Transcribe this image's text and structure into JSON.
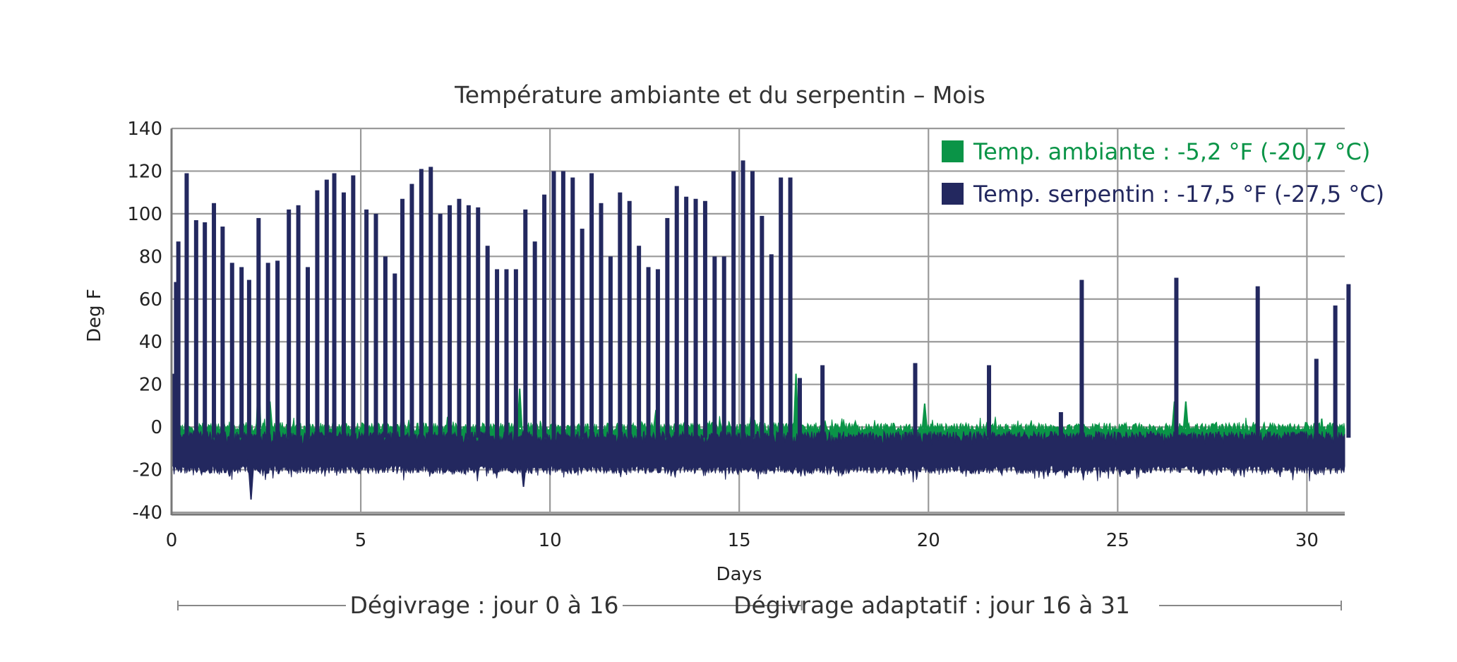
{
  "chart_data": {
    "type": "area",
    "title": "Température ambiante et du serpentin – Mois",
    "xlabel": "Days",
    "ylabel": "Deg F",
    "xlim": [
      0,
      31
    ],
    "ylim": [
      -40,
      140
    ],
    "x_ticks": [
      "0",
      "5",
      "10",
      "15",
      "20",
      "25",
      "30"
    ],
    "y_ticks": [
      "-40",
      "-20",
      "0",
      "20",
      "40",
      "60",
      "80",
      "100",
      "120",
      "140"
    ],
    "grid": true,
    "legend_position": "top-right",
    "series": [
      {
        "name": "Temp. ambiante : -5,2 °F (-20,7 °C)",
        "color": "#0a9447",
        "baseline_range": [
          -12,
          2
        ],
        "spikes": [
          [
            2.3,
            25
          ],
          [
            2.6,
            12
          ],
          [
            6.1,
            8
          ],
          [
            9.2,
            18
          ],
          [
            12.8,
            8
          ],
          [
            16.5,
            25
          ],
          [
            19.9,
            11
          ],
          [
            26.5,
            12
          ],
          [
            26.8,
            12
          ]
        ]
      },
      {
        "name": "Temp. serpentin : -17,5 °F (-27,5 °C)",
        "color": "#23285f",
        "baseline_range": [
          -18,
          -5
        ],
        "dips": [
          [
            2.1,
            -34
          ],
          [
            9.3,
            -28
          ]
        ],
        "defrost_peaks": [
          [
            0.05,
            25
          ],
          [
            0.12,
            68
          ],
          [
            0.18,
            87
          ],
          [
            0.4,
            119
          ],
          [
            0.65,
            97
          ],
          [
            0.88,
            96
          ],
          [
            1.12,
            105
          ],
          [
            1.35,
            94
          ],
          [
            1.6,
            77
          ],
          [
            1.85,
            75
          ],
          [
            2.05,
            69
          ],
          [
            2.3,
            98
          ],
          [
            2.55,
            77
          ],
          [
            2.8,
            78
          ],
          [
            3.1,
            102
          ],
          [
            3.35,
            104
          ],
          [
            3.6,
            75
          ],
          [
            3.85,
            111
          ],
          [
            4.1,
            116
          ],
          [
            4.3,
            119
          ],
          [
            4.55,
            110
          ],
          [
            4.8,
            118
          ],
          [
            5.15,
            102
          ],
          [
            5.4,
            100
          ],
          [
            5.65,
            80
          ],
          [
            5.9,
            72
          ],
          [
            6.1,
            107
          ],
          [
            6.35,
            114
          ],
          [
            6.6,
            121
          ],
          [
            6.85,
            122
          ],
          [
            7.1,
            100
          ],
          [
            7.35,
            104
          ],
          [
            7.6,
            107
          ],
          [
            7.85,
            104
          ],
          [
            8.1,
            103
          ],
          [
            8.35,
            85
          ],
          [
            8.6,
            74
          ],
          [
            8.85,
            74
          ],
          [
            9.1,
            74
          ],
          [
            9.35,
            102
          ],
          [
            9.6,
            87
          ],
          [
            9.85,
            109
          ],
          [
            10.1,
            120
          ],
          [
            10.35,
            120
          ],
          [
            10.6,
            117
          ],
          [
            10.85,
            93
          ],
          [
            11.1,
            119
          ],
          [
            11.35,
            105
          ],
          [
            11.6,
            80
          ],
          [
            11.85,
            110
          ],
          [
            12.1,
            106
          ],
          [
            12.35,
            85
          ],
          [
            12.6,
            75
          ],
          [
            12.85,
            74
          ],
          [
            13.1,
            98
          ],
          [
            13.35,
            113
          ],
          [
            13.6,
            108
          ],
          [
            13.85,
            107
          ],
          [
            14.1,
            106
          ],
          [
            14.35,
            80
          ],
          [
            14.6,
            80
          ],
          [
            14.85,
            120
          ],
          [
            15.1,
            125
          ],
          [
            15.35,
            120
          ],
          [
            15.6,
            99
          ],
          [
            15.85,
            81
          ],
          [
            16.1,
            117
          ],
          [
            16.35,
            117
          ],
          [
            16.6,
            23
          ],
          [
            17.2,
            29
          ],
          [
            19.65,
            30
          ],
          [
            21.6,
            29
          ],
          [
            23.5,
            7
          ],
          [
            24.05,
            69
          ],
          [
            26.55,
            70
          ],
          [
            28.7,
            66
          ],
          [
            30.25,
            32
          ],
          [
            30.75,
            57
          ],
          [
            31.1,
            67
          ]
        ]
      }
    ],
    "annotations": [
      {
        "text": "Dégivrage : jour 0 à 16",
        "x_start": 0,
        "x_end": 16.5
      },
      {
        "text": "Dégivrage adaptatif : jour 16 à 31",
        "x_start": 16.5,
        "x_end": 31
      }
    ]
  }
}
